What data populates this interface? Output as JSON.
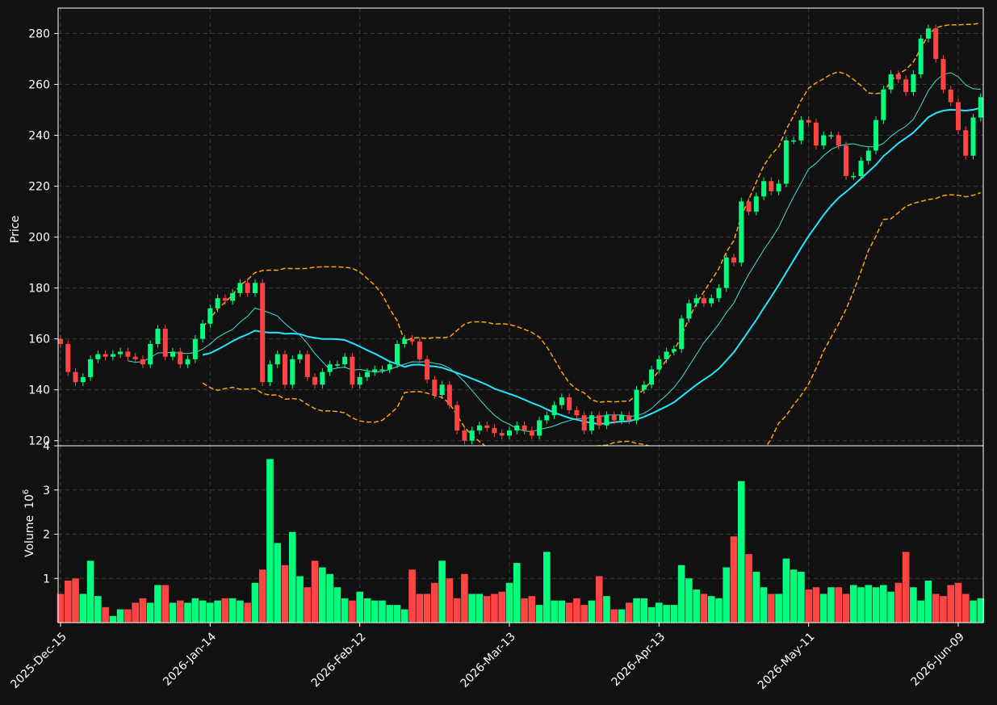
{
  "chart_data": {
    "type": "candlestick",
    "ylabel_price": "Price",
    "ylabel_volume": "Volume",
    "volume_exponent_label": "10",
    "volume_exponent_sup": "6",
    "price_ylim": [
      118,
      290
    ],
    "price_yticks": [
      120,
      140,
      160,
      180,
      200,
      220,
      240,
      260,
      280
    ],
    "volume_ylim": [
      0,
      4.0
    ],
    "volume_yticks": [
      1,
      2,
      3,
      4
    ],
    "xtick_labels": [
      "2025-Dec-15",
      "2026-Jan-14",
      "2026-Feb-12",
      "2026-Mar-13",
      "2026-Apr-13",
      "2026-May-11",
      "2026-Jun-09"
    ],
    "xtick_index": [
      0,
      20,
      40,
      60,
      80,
      100,
      120
    ],
    "grid": true,
    "colors": {
      "background": "#111111",
      "up": "#00ff7f",
      "down": "#ff4444",
      "ma_short": "#40e0d0",
      "ma_long": "#22e5ff",
      "bands": "#ffa500",
      "grid": "#3a3a3a",
      "axis": "#ffffff"
    },
    "overlays": [
      "ma_short",
      "ma_long",
      "bollinger_upper",
      "bollinger_lower"
    ],
    "close_anchors": [
      [
        0,
        158
      ],
      [
        1,
        147
      ],
      [
        2,
        143
      ],
      [
        3,
        145
      ],
      [
        4,
        152
      ],
      [
        5,
        154
      ],
      [
        6,
        153
      ],
      [
        7,
        154
      ],
      [
        8,
        155
      ],
      [
        9,
        153
      ],
      [
        10,
        152
      ],
      [
        11,
        150
      ],
      [
        12,
        158
      ],
      [
        13,
        164
      ],
      [
        14,
        153
      ],
      [
        15,
        155
      ],
      [
        16,
        150
      ],
      [
        17,
        152
      ],
      [
        18,
        160
      ],
      [
        19,
        166
      ],
      [
        20,
        172
      ],
      [
        21,
        176
      ],
      [
        22,
        175
      ],
      [
        23,
        178
      ],
      [
        24,
        182
      ],
      [
        25,
        178
      ],
      [
        26,
        182
      ],
      [
        27,
        143
      ],
      [
        28,
        150
      ],
      [
        29,
        154
      ],
      [
        30,
        142
      ],
      [
        31,
        152
      ],
      [
        32,
        154
      ],
      [
        33,
        145
      ],
      [
        34,
        142
      ],
      [
        35,
        147
      ],
      [
        36,
        150
      ],
      [
        37,
        150
      ],
      [
        38,
        153
      ],
      [
        39,
        142
      ],
      [
        40,
        145
      ],
      [
        41,
        147
      ],
      [
        42,
        148
      ],
      [
        43,
        148
      ],
      [
        44,
        150
      ],
      [
        45,
        158
      ],
      [
        46,
        160
      ],
      [
        47,
        159
      ],
      [
        48,
        152
      ],
      [
        49,
        144
      ],
      [
        50,
        138
      ],
      [
        51,
        142
      ],
      [
        52,
        134
      ],
      [
        53,
        124
      ],
      [
        54,
        120
      ],
      [
        55,
        124
      ],
      [
        56,
        126
      ],
      [
        57,
        125
      ],
      [
        58,
        123
      ],
      [
        59,
        122
      ],
      [
        60,
        124
      ],
      [
        61,
        126
      ],
      [
        62,
        124
      ],
      [
        63,
        122
      ],
      [
        64,
        128
      ],
      [
        65,
        130
      ],
      [
        66,
        134
      ],
      [
        67,
        137
      ],
      [
        68,
        132
      ],
      [
        69,
        130
      ],
      [
        70,
        124
      ],
      [
        71,
        130
      ],
      [
        72,
        126
      ],
      [
        73,
        130
      ],
      [
        74,
        128
      ],
      [
        75,
        130
      ],
      [
        76,
        128
      ],
      [
        77,
        140
      ],
      [
        78,
        142
      ],
      [
        79,
        148
      ],
      [
        80,
        152
      ],
      [
        81,
        155
      ],
      [
        82,
        156
      ],
      [
        83,
        168
      ],
      [
        84,
        174
      ],
      [
        85,
        176
      ],
      [
        86,
        174
      ],
      [
        87,
        176
      ],
      [
        88,
        180
      ],
      [
        89,
        192
      ],
      [
        90,
        190
      ],
      [
        91,
        214
      ],
      [
        92,
        210
      ],
      [
        93,
        216
      ],
      [
        94,
        222
      ],
      [
        95,
        218
      ],
      [
        96,
        221
      ],
      [
        97,
        238
      ],
      [
        98,
        238
      ],
      [
        99,
        246
      ],
      [
        100,
        245
      ],
      [
        101,
        236
      ],
      [
        102,
        240
      ],
      [
        103,
        240
      ],
      [
        104,
        236
      ],
      [
        105,
        224
      ],
      [
        106,
        224
      ],
      [
        107,
        230
      ],
      [
        108,
        234
      ],
      [
        109,
        246
      ],
      [
        110,
        258
      ],
      [
        111,
        264
      ],
      [
        112,
        262
      ],
      [
        113,
        257
      ],
      [
        114,
        264
      ],
      [
        115,
        278
      ],
      [
        116,
        282
      ],
      [
        117,
        270
      ],
      [
        118,
        258
      ],
      [
        119,
        253
      ],
      [
        120,
        242
      ],
      [
        121,
        232
      ],
      [
        122,
        247
      ],
      [
        123,
        255
      ]
    ],
    "volume_anchors": [
      [
        0,
        0.65
      ],
      [
        1,
        0.95
      ],
      [
        2,
        1.0
      ],
      [
        3,
        0.65
      ],
      [
        4,
        1.4
      ],
      [
        5,
        0.6
      ],
      [
        6,
        0.35
      ],
      [
        7,
        0.15
      ],
      [
        8,
        0.3
      ],
      [
        9,
        0.3
      ],
      [
        10,
        0.45
      ],
      [
        11,
        0.55
      ],
      [
        12,
        0.45
      ],
      [
        13,
        0.85
      ],
      [
        14,
        0.85
      ],
      [
        15,
        0.45
      ],
      [
        16,
        0.5
      ],
      [
        17,
        0.45
      ],
      [
        18,
        0.55
      ],
      [
        19,
        0.5
      ],
      [
        20,
        0.45
      ],
      [
        21,
        0.5
      ],
      [
        22,
        0.55
      ],
      [
        23,
        0.55
      ],
      [
        24,
        0.5
      ],
      [
        25,
        0.45
      ],
      [
        26,
        0.9
      ],
      [
        27,
        1.2
      ],
      [
        28,
        3.7
      ],
      [
        29,
        1.8
      ],
      [
        30,
        1.3
      ],
      [
        31,
        2.05
      ],
      [
        32,
        1.05
      ],
      [
        33,
        0.8
      ],
      [
        34,
        1.4
      ],
      [
        35,
        1.25
      ],
      [
        36,
        1.1
      ],
      [
        37,
        0.8
      ],
      [
        38,
        0.55
      ],
      [
        39,
        0.5
      ],
      [
        40,
        0.7
      ],
      [
        41,
        0.55
      ],
      [
        42,
        0.5
      ],
      [
        43,
        0.5
      ],
      [
        44,
        0.4
      ],
      [
        45,
        0.4
      ],
      [
        46,
        0.3
      ],
      [
        47,
        1.2
      ],
      [
        48,
        0.65
      ],
      [
        49,
        0.65
      ],
      [
        50,
        0.9
      ],
      [
        51,
        1.4
      ],
      [
        52,
        1.0
      ],
      [
        53,
        0.55
      ],
      [
        54,
        1.1
      ],
      [
        55,
        0.65
      ],
      [
        56,
        0.65
      ],
      [
        57,
        0.6
      ],
      [
        58,
        0.65
      ],
      [
        59,
        0.7
      ],
      [
        60,
        0.9
      ],
      [
        61,
        1.35
      ],
      [
        62,
        0.55
      ],
      [
        63,
        0.6
      ],
      [
        64,
        0.4
      ],
      [
        65,
        1.6
      ],
      [
        66,
        0.5
      ],
      [
        67,
        0.5
      ],
      [
        68,
        0.45
      ],
      [
        69,
        0.55
      ],
      [
        70,
        0.4
      ],
      [
        71,
        0.5
      ],
      [
        72,
        1.05
      ],
      [
        73,
        0.6
      ],
      [
        74,
        0.3
      ],
      [
        75,
        0.3
      ],
      [
        76,
        0.45
      ],
      [
        77,
        0.55
      ],
      [
        78,
        0.55
      ],
      [
        79,
        0.35
      ],
      [
        80,
        0.45
      ],
      [
        81,
        0.4
      ],
      [
        82,
        0.4
      ],
      [
        83,
        1.3
      ],
      [
        84,
        1.0
      ],
      [
        85,
        0.75
      ],
      [
        86,
        0.65
      ],
      [
        87,
        0.6
      ],
      [
        88,
        0.55
      ],
      [
        89,
        1.25
      ],
      [
        90,
        1.95
      ],
      [
        91,
        3.2
      ],
      [
        92,
        1.55
      ],
      [
        93,
        1.15
      ],
      [
        94,
        0.8
      ],
      [
        95,
        0.65
      ],
      [
        96,
        0.65
      ],
      [
        97,
        1.45
      ],
      [
        98,
        1.2
      ],
      [
        99,
        1.15
      ],
      [
        100,
        0.75
      ],
      [
        101,
        0.8
      ],
      [
        102,
        0.65
      ],
      [
        103,
        0.8
      ],
      [
        104,
        0.8
      ],
      [
        105,
        0.65
      ],
      [
        106,
        0.85
      ],
      [
        107,
        0.8
      ],
      [
        108,
        0.85
      ],
      [
        109,
        0.8
      ],
      [
        110,
        0.85
      ],
      [
        111,
        0.7
      ],
      [
        112,
        0.9
      ],
      [
        113,
        1.6
      ],
      [
        114,
        0.8
      ],
      [
        115,
        0.5
      ],
      [
        116,
        0.95
      ],
      [
        117,
        0.65
      ],
      [
        118,
        0.6
      ],
      [
        119,
        0.85
      ],
      [
        120,
        0.9
      ],
      [
        121,
        0.65
      ],
      [
        122,
        0.5
      ],
      [
        123,
        0.55
      ]
    ],
    "n_bars": 124
  }
}
